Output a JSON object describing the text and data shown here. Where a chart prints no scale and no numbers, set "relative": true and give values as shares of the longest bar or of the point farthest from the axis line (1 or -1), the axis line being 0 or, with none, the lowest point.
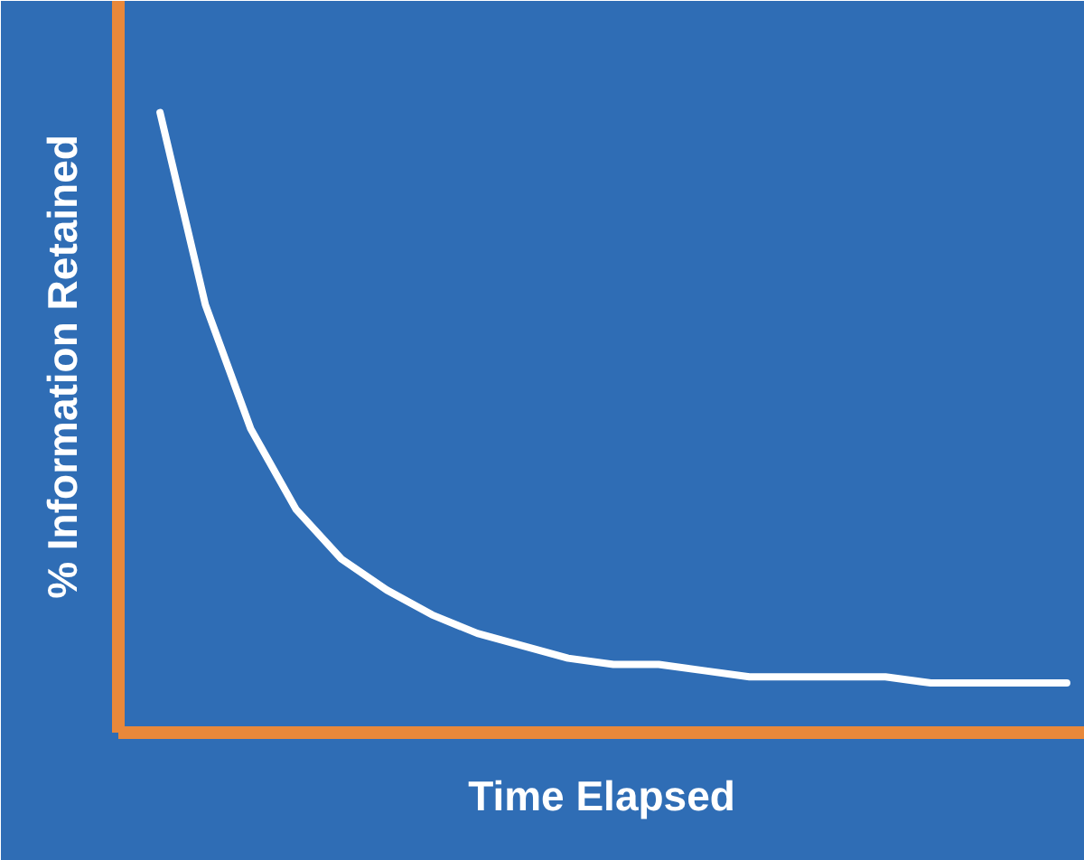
{
  "chart_data": {
    "type": "line",
    "xlabel": "Time Elapsed",
    "ylabel": "% Information Retained",
    "relative": true,
    "categories": [
      null,
      null,
      null,
      null,
      null,
      null,
      null,
      null,
      null,
      null,
      null,
      null,
      null,
      null,
      null,
      null,
      null,
      null,
      null,
      null,
      null
    ],
    "series": [
      {
        "color": "#ffffff",
        "values": [
          1,
          0.69,
          0.49,
          0.36,
          0.28,
          0.23,
          0.19,
          0.16,
          0.14,
          0.12,
          0.11,
          0.11,
          0.1,
          0.09,
          0.09,
          0.09,
          0.09,
          0.08,
          0.08,
          0.08,
          0.08
        ]
      }
    ]
  }
}
